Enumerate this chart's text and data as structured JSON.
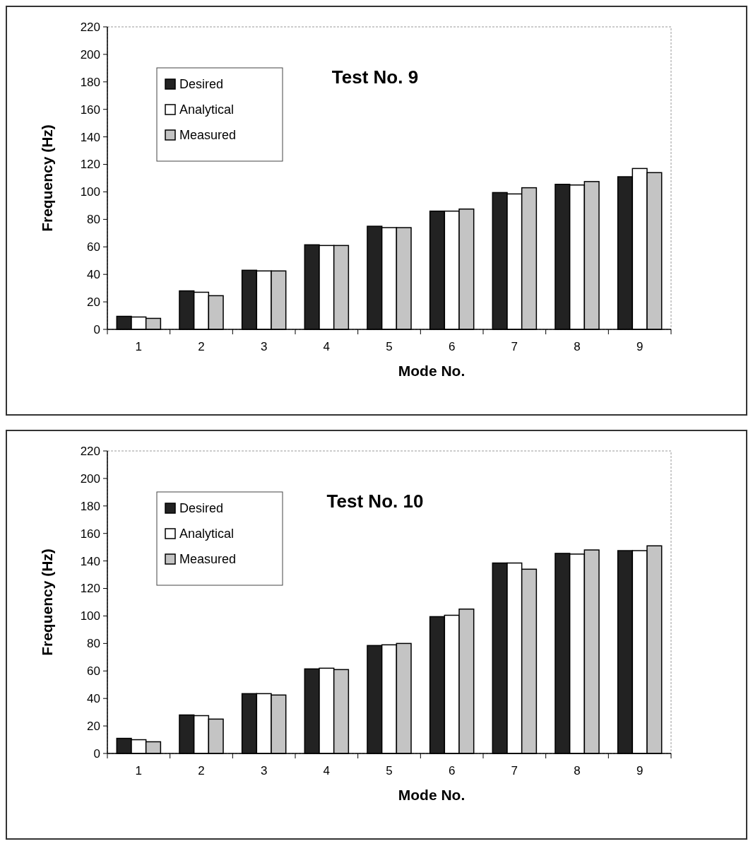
{
  "chart_data": [
    {
      "type": "bar",
      "title": "Test No. 9",
      "xlabel": "Mode No.",
      "ylabel": "Frequency (Hz)",
      "categories": [
        "1",
        "2",
        "3",
        "4",
        "5",
        "6",
        "7",
        "8",
        "9"
      ],
      "series": [
        {
          "name": "Desired",
          "color": "#222222",
          "values": [
            9.5,
            28,
            43,
            61.5,
            75,
            86,
            99.5,
            105.5,
            111
          ]
        },
        {
          "name": "Analytical",
          "color": "#ffffff",
          "values": [
            9,
            27,
            42.5,
            61,
            74,
            86,
            98.5,
            105,
            117
          ]
        },
        {
          "name": "Measured",
          "color": "#c4c4c4",
          "values": [
            8,
            24.5,
            42.5,
            61,
            74,
            87.5,
            103,
            107.5,
            114
          ]
        }
      ],
      "ylim": [
        0,
        220
      ],
      "yticks": [
        0,
        20,
        40,
        60,
        80,
        100,
        120,
        140,
        160,
        180,
        200,
        220
      ],
      "grid": false,
      "legend": "top left"
    },
    {
      "type": "bar",
      "title": "Test No. 10",
      "xlabel": "Mode No.",
      "ylabel": "Frequency (Hz)",
      "categories": [
        "1",
        "2",
        "3",
        "4",
        "5",
        "6",
        "7",
        "8",
        "9"
      ],
      "series": [
        {
          "name": "Desired",
          "color": "#222222",
          "values": [
            11,
            28,
            43.5,
            61.5,
            78.5,
            99.5,
            138.5,
            145.5,
            147.5
          ]
        },
        {
          "name": "Analytical",
          "color": "#ffffff",
          "values": [
            10,
            27.5,
            43.5,
            62,
            79,
            100.5,
            138.5,
            145,
            147.5
          ]
        },
        {
          "name": "Measured",
          "color": "#c4c4c4",
          "values": [
            8.5,
            25,
            42.5,
            61,
            80,
            105,
            134,
            148,
            151
          ]
        }
      ],
      "ylim": [
        0,
        220
      ],
      "yticks": [
        0,
        20,
        40,
        60,
        80,
        100,
        120,
        140,
        160,
        180,
        200,
        220
      ],
      "grid": false,
      "legend": "top left"
    }
  ]
}
